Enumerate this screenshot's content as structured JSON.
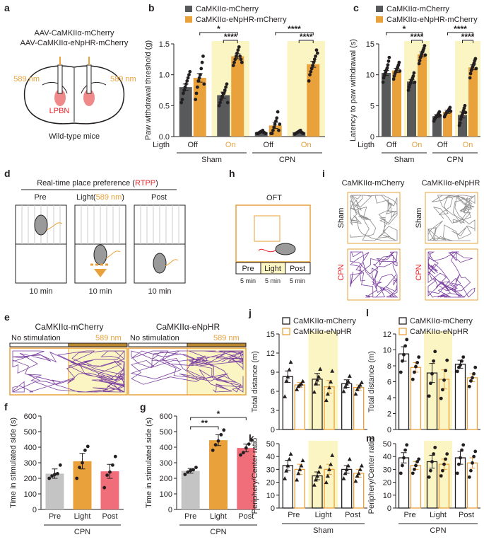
{
  "chart_data": [
    {
      "type": "bar",
      "panel": "b",
      "y_label": "Paw withdrawal threshold (g)",
      "x_row_label": "Ligth",
      "categories": [
        "Off",
        "On",
        "Off",
        "On"
      ],
      "groups": [
        "Sham",
        "CPN"
      ],
      "group_colors": [
        "#231f20",
        "#e8262c"
      ],
      "ylim": [
        0,
        1.5
      ],
      "yticks": [
        {
          "value": 0,
          "label": "0.0"
        },
        {
          "value": 0.5,
          "label": "0.5"
        },
        {
          "value": 1,
          "label": "1.0"
        },
        {
          "value": 1.5,
          "label": "1.5"
        }
      ],
      "shade_color": "#fbf5c4",
      "style": "filled",
      "marker": "circle",
      "annotations": [
        "*",
        "****",
        "****",
        "****"
      ],
      "series": [
        {
          "name": "CaMKIIα-mCherry",
          "color": "#58595b",
          "values": [
            0.8,
            0.67,
            0.07,
            0.07
          ],
          "errors": [
            0.05,
            0.05,
            0.01,
            0.01
          ],
          "points": [
            [
              0.55,
              0.6,
              0.7,
              0.75,
              0.8,
              0.85,
              0.9,
              0.95,
              1.0,
              1.05
            ],
            [
              0.5,
              0.55,
              0.6,
              0.65,
              0.7,
              0.7,
              0.75,
              0.8,
              0.85,
              0.55
            ],
            [
              0.05,
              0.05,
              0.06,
              0.07,
              0.08,
              0.08,
              0.1,
              0.07,
              0.06,
              0.05
            ],
            [
              0.04,
              0.05,
              0.06,
              0.07,
              0.08,
              0.09,
              0.1,
              0.07,
              0.06,
              0.05
            ]
          ]
        },
        {
          "name": "CaMKIIα-eNpHR-mCherry",
          "color": "#e9a23b",
          "values": [
            0.95,
            1.3,
            0.18,
            1.17
          ],
          "errors": [
            0.07,
            0.04,
            0.05,
            0.05
          ],
          "points": [
            [
              0.6,
              0.7,
              0.8,
              0.9,
              0.95,
              1.0,
              1.1,
              1.2,
              1.3,
              0.85
            ],
            [
              1.15,
              1.2,
              1.25,
              1.3,
              1.35,
              1.4,
              1.45,
              1.3,
              1.25,
              1.2
            ],
            [
              0.05,
              0.05,
              0.1,
              0.15,
              0.2,
              0.25,
              0.3,
              0.4,
              0.1,
              0.2
            ],
            [
              0.9,
              1.0,
              1.05,
              1.1,
              1.15,
              1.2,
              1.25,
              1.3,
              1.4,
              1.35
            ]
          ]
        }
      ]
    },
    {
      "type": "bar",
      "panel": "c",
      "y_label": "Latency to paw withdrawal (s)",
      "x_row_label": "Ligth",
      "categories": [
        "Off",
        "On",
        "Off",
        "On"
      ],
      "groups": [
        "Sham",
        "CPN"
      ],
      "group_colors": [
        "#231f20",
        "#e8262c"
      ],
      "ylim": [
        0,
        15
      ],
      "yticks": [
        0,
        5,
        10,
        15
      ],
      "shade_color": "#fbf5c4",
      "style": "filled",
      "marker": "circle",
      "annotations": [
        "*",
        "****",
        "****",
        "****"
      ],
      "series": [
        {
          "name": "CaMKIIα-mCherry",
          "color": "#58595b",
          "values": [
            10.3,
            8.9,
            3.3,
            3.5
          ],
          "errors": [
            0.4,
            0.35,
            0.25,
            0.5
          ],
          "points": [
            [
              8.8,
              9.5,
              9.9,
              10.2,
              10.5,
              10.8,
              11.1,
              11.6,
              12.2,
              12.8
            ],
            [
              7.5,
              8.0,
              8.4,
              8.7,
              9.0,
              9.2,
              9.5,
              9.8,
              10.3,
              8.8
            ],
            [
              2.5,
              2.8,
              3.0,
              3.2,
              3.3,
              3.4,
              3.6,
              3.8,
              4.0,
              3.4
            ],
            [
              1.8,
              2.2,
              2.8,
              3.2,
              3.5,
              3.8,
              4.2,
              4.6,
              5.0,
              3.9
            ]
          ]
        },
        {
          "name": "CaMKIIα-eNpHR-mCherry",
          "color": "#e9a23b",
          "values": [
            10.7,
            13.3,
            4.0,
            11.2
          ],
          "errors": [
            0.35,
            0.4,
            0.25,
            0.4
          ],
          "points": [
            [
              9.3,
              9.8,
              10.2,
              10.5,
              10.7,
              11.0,
              11.3,
              11.6,
              12.0,
              10.6
            ],
            [
              11.8,
              12.3,
              12.8,
              13.1,
              13.4,
              13.7,
              14.0,
              14.3,
              14.7,
              13.2
            ],
            [
              3.2,
              3.5,
              3.7,
              3.9,
              4.0,
              4.1,
              4.3,
              4.5,
              4.7,
              4.1
            ],
            [
              9.5,
              10.2,
              10.7,
              11.0,
              11.3,
              11.6,
              11.9,
              12.3,
              12.6,
              11.0
            ]
          ]
        }
      ]
    },
    {
      "type": "bar",
      "panel": "f",
      "y_label": "Time in stimulated side (s)",
      "categories": [
        "Pre",
        "Light",
        "Post"
      ],
      "groups": [
        "CPN"
      ],
      "group_colors": [
        "#e8262c"
      ],
      "ylim": [
        0,
        600
      ],
      "yticks": [
        0,
        100,
        200,
        300,
        400,
        500,
        600
      ],
      "style": "filled",
      "marker": "circle",
      "colors": [
        "#c4c4c4",
        "#e9a23b",
        "#f06d7a"
      ],
      "values": [
        230,
        310,
        245
      ],
      "errors": [
        30,
        50,
        45
      ],
      "points": [
        [
          200,
          215,
          225,
          230,
          285
        ],
        [
          200,
          270,
          300,
          380,
          405
        ],
        [
          140,
          220,
          240,
          285,
          340
        ]
      ]
    },
    {
      "type": "bar",
      "panel": "g",
      "y_label": "Time in stimulated side (s)",
      "categories": [
        "Pre",
        "Light",
        "Post"
      ],
      "groups": [
        "CPN"
      ],
      "group_colors": [
        "#e8262c"
      ],
      "ylim": [
        0,
        600
      ],
      "yticks": [
        0,
        100,
        200,
        300,
        400,
        500,
        600
      ],
      "style": "filled",
      "marker": "circle",
      "colors": [
        "#c4c4c4",
        "#e9a23b",
        "#f06d7a"
      ],
      "annotations": [
        "**",
        "*"
      ],
      "values": [
        248,
        445,
        395
      ],
      "errors": [
        15,
        35,
        25
      ],
      "points": [
        [
          225,
          240,
          250,
          255,
          270
        ],
        [
          380,
          415,
          440,
          480,
          510
        ],
        [
          350,
          365,
          395,
          420,
          445
        ]
      ]
    },
    {
      "type": "bar",
      "panel": "j",
      "y_label": "Total distance (m)",
      "ylim": [
        0,
        15
      ],
      "yticks": [
        0,
        3,
        6,
        9,
        12,
        15
      ],
      "shade_color": "#fbf5c4",
      "style": "outline",
      "marker": "triangle",
      "series": [
        {
          "name": "CaMKIIα-mCherry",
          "color": "#231f20",
          "values": [
            8.3,
            7.9,
            7.2
          ],
          "errors": [
            0.9,
            0.9,
            0.6
          ],
          "points": [
            [
              5.2,
              7.6,
              8.3,
              9.4,
              10.6
            ],
            [
              5.9,
              7.2,
              7.8,
              8.3,
              9.5
            ],
            [
              6.0,
              6.7,
              7.2,
              7.6,
              8.4
            ]
          ]
        },
        {
          "name": "CaMKIIα-eNpHR",
          "color": "#e9a23b",
          "values": [
            7.0,
            6.7,
            6.6
          ],
          "errors": [
            0.4,
            1.0,
            0.4
          ],
          "points": [
            [
              6.3,
              6.8,
              7.0,
              7.2,
              7.6
            ],
            [
              4.6,
              5.6,
              6.6,
              7.5,
              9.2
            ],
            [
              5.6,
              6.3,
              6.7,
              7.0,
              7.4
            ]
          ]
        }
      ]
    },
    {
      "type": "bar",
      "panel": "k",
      "y_label": "Periphery/Center ratio",
      "categories": [
        "Pre",
        "Light",
        "Post"
      ],
      "groups": [
        "Sham"
      ],
      "group_colors": [
        "#231f20"
      ],
      "ylim": [
        0,
        50
      ],
      "yticks": [
        0,
        10,
        20,
        30,
        40,
        50
      ],
      "shade_color": "#fbf5c4",
      "style": "outline",
      "marker": "triangle",
      "series": [
        {
          "name": "CaMKIIα-mCherry",
          "color": "#231f20",
          "values": [
            33,
            25,
            30
          ],
          "errors": [
            4,
            3,
            3
          ],
          "points": [
            [
              23,
              29,
              33,
              38,
              42
            ],
            [
              18,
              22,
              25,
              28,
              32
            ],
            [
              23,
              27,
              30,
              33,
              38
            ]
          ]
        },
        {
          "name": "CaMKIIα-eNpHR",
          "color": "#e9a23b",
          "values": [
            30,
            30,
            27
          ],
          "errors": [
            4,
            4,
            3
          ],
          "points": [
            [
              22,
              27,
              30,
              33,
              37
            ],
            [
              20,
              25,
              30,
              34,
              41
            ],
            [
              21,
              25,
              27,
              30,
              33
            ]
          ]
        }
      ]
    },
    {
      "type": "bar",
      "panel": "l",
      "y_label": "Total distance (m)",
      "ylim": [
        0,
        12
      ],
      "yticks": [
        0,
        2,
        4,
        6,
        8,
        10,
        12
      ],
      "shade_color": "#fbf5c4",
      "style": "outline",
      "marker": "circle",
      "series": [
        {
          "name": "CaMKIIα-mCherry",
          "color": "#231f20",
          "values": [
            9.5,
            7.1,
            8.2
          ],
          "errors": [
            0.9,
            1.2,
            0.5
          ],
          "points": [
            [
              7.2,
              8.6,
              9.4,
              10.5,
              11.3
            ],
            [
              4.2,
              5.8,
              7.0,
              8.6,
              9.8
            ],
            [
              7.3,
              7.8,
              8.1,
              8.6,
              9.1
            ]
          ]
        },
        {
          "name": "CaMKIIα-eNpHR",
          "color": "#e9a23b",
          "values": [
            7.8,
            6.3,
            6.5
          ],
          "errors": [
            0.6,
            1.2,
            0.5
          ],
          "points": [
            [
              6.3,
              7.2,
              7.9,
              8.4,
              9.1
            ],
            [
              3.9,
              5.0,
              6.2,
              7.4,
              8.7
            ],
            [
              5.4,
              6.1,
              6.5,
              7.0,
              7.8
            ]
          ]
        }
      ]
    },
    {
      "type": "bar",
      "panel": "m",
      "y_label": "Periphery/Center ratio",
      "categories": [
        "Pre",
        "Light",
        "Post"
      ],
      "groups": [
        "CPN"
      ],
      "group_colors": [
        "#e8262c"
      ],
      "ylim": [
        0,
        50
      ],
      "yticks": [
        0,
        10,
        20,
        30,
        40,
        50
      ],
      "shade_color": "#fbf5c4",
      "style": "outline",
      "marker": "circle",
      "series": [
        {
          "name": "CaMKIIα-mCherry",
          "color": "#231f20",
          "values": [
            39,
            36,
            39
          ],
          "errors": [
            4,
            5,
            5
          ],
          "points": [
            [
              27,
              33,
              39,
              45,
              49
            ],
            [
              24,
              29,
              36,
              42,
              47
            ],
            [
              27,
              34,
              39,
              45,
              49
            ]
          ]
        },
        {
          "name": "CaMKIIα-eNpHR",
          "color": "#e9a23b",
          "values": [
            33,
            34,
            35
          ],
          "errors": [
            3,
            4,
            4
          ],
          "points": [
            [
              27,
              30,
              33,
              36,
              38
            ],
            [
              25,
              29,
              34,
              38,
              42
            ],
            [
              24,
              29,
              35,
              40,
              44
            ]
          ]
        }
      ]
    }
  ],
  "diagrams": {
    "a": {
      "panel": "a",
      "construct_1": "AAV-CaMKIIα-mCherry",
      "construct_2": "AAV-CaMKIIα-eNpHR-mCherry",
      "light_left": "589 nm",
      "light_right": "589 nm",
      "target": "LPBN",
      "caption": "Wild-type mice"
    },
    "d": {
      "panel": "d",
      "title": "Real-time place preference (",
      "title_highlight": "RTPP",
      "title_end": ")",
      "phase_pre": "Pre",
      "phase_light": "Light(",
      "phase_light_wavelength": "589 nm",
      "phase_light_end": ")",
      "phase_post": "Post",
      "durations": [
        "10 min",
        "10 min",
        "10 min"
      ]
    },
    "e": {
      "panel": "e",
      "title_left": "CaMKIIα-mCherry",
      "title_right": "CaMKIIα-eNpHR",
      "no_stim_left": "No stimulation",
      "stim_left": "589 nm",
      "no_stim_right": "No stimulation",
      "stim_right": "589 nm"
    },
    "h": {
      "panel": "h",
      "title": "OFT",
      "phases": [
        "Pre",
        "Light",
        "Post"
      ],
      "durations": [
        "5 min",
        "5 min",
        "5 min"
      ]
    },
    "i": {
      "panel": "i",
      "column_left": "CaMKIIα-mCherry",
      "column_right": "CaMKIIα-eNpHR",
      "row_sham_left": "Sham",
      "row_cpn_left": "CPN",
      "row_sham_right": "Sham",
      "row_cpn_right": "CPN"
    }
  }
}
